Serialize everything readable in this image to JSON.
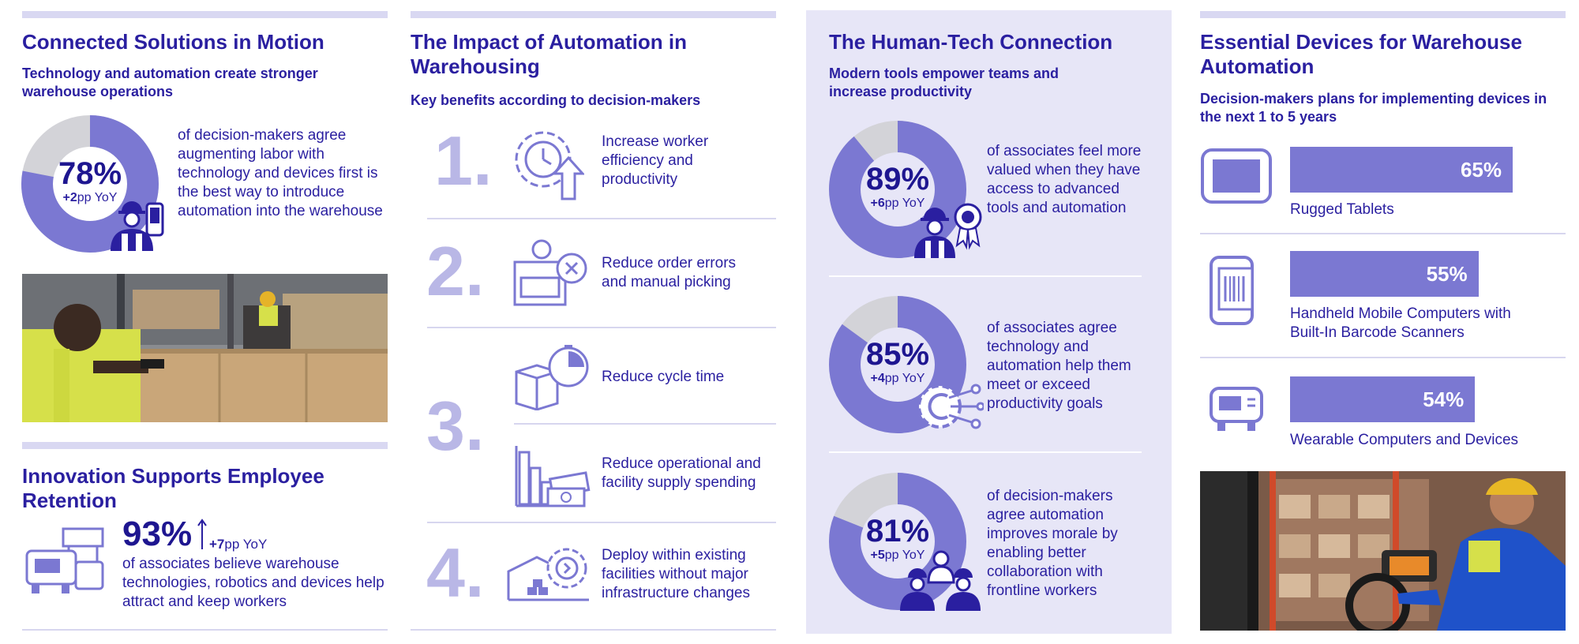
{
  "col1": {
    "title": "Connected Solutions in Motion",
    "subtitle": "Technology and automation create stronger warehouse operations",
    "stat": {
      "value": 78,
      "pct": "78%",
      "yoy_num": "+2",
      "yoy_unit": "pp YoY"
    },
    "stat_text": "of decision-makers agree augmenting labor with technology and devices first is the best way to introduce automation into the warehouse",
    "retention": {
      "title": "Innovation Supports Employee Retention",
      "pct": "93%",
      "yoy_num": "+7",
      "yoy_unit": "pp YoY",
      "text": "of associates believe warehouse technologies, robotics and devices help attract and keep workers"
    }
  },
  "col2": {
    "title": "The Impact of Automation in Warehousing",
    "subtitle": "Key benefits according to decision-makers",
    "items": [
      {
        "num": "1.",
        "text": "Increase worker efficiency and productivity"
      },
      {
        "num": "2.",
        "text": "Reduce order errors and manual picking"
      },
      {
        "num": "3.",
        "text": "Reduce cycle time"
      },
      {
        "num": "",
        "text": "Reduce operational and facility supply spending"
      },
      {
        "num": "4.",
        "text": "Deploy within existing facilities without major infrastructure changes"
      }
    ]
  },
  "col3": {
    "title": "The Human-Tech Connection",
    "subtitle": "Modern tools empower teams and increase productivity",
    "stats": [
      {
        "value": 89,
        "pct": "89%",
        "yoy_num": "+6",
        "yoy_unit": "pp YoY",
        "text": "of associates feel more valued when they have access to advanced tools and automation"
      },
      {
        "value": 85,
        "pct": "85%",
        "yoy_num": "+4",
        "yoy_unit": "pp YoY",
        "text": "of associates agree technology and automation help them meet or exceed productivity goals"
      },
      {
        "value": 81,
        "pct": "81%",
        "yoy_num": "+5",
        "yoy_unit": "pp YoY",
        "text": "of decision-makers agree automation improves morale by enabling better collaboration with frontline workers"
      }
    ]
  },
  "col4": {
    "title": "Essential Devices for Warehouse Automation",
    "subtitle": "Decision-makers plans for implementing devices in the next 1 to 5 years",
    "devices": [
      {
        "value": 65,
        "pct": "65%",
        "label": "Rugged Tablets"
      },
      {
        "value": 55,
        "pct": "55%",
        "label": "Handheld Mobile Computers with Built-In Barcode Scanners"
      },
      {
        "value": 54,
        "pct": "54%",
        "label": "Wearable Computers and Devices"
      }
    ]
  },
  "colors": {
    "primary": "#2a1fa0",
    "accent": "#7b78d2",
    "light": "#d9d8f2",
    "panel": "#e7e6f7",
    "donut_rest": "#d3d3d8"
  }
}
